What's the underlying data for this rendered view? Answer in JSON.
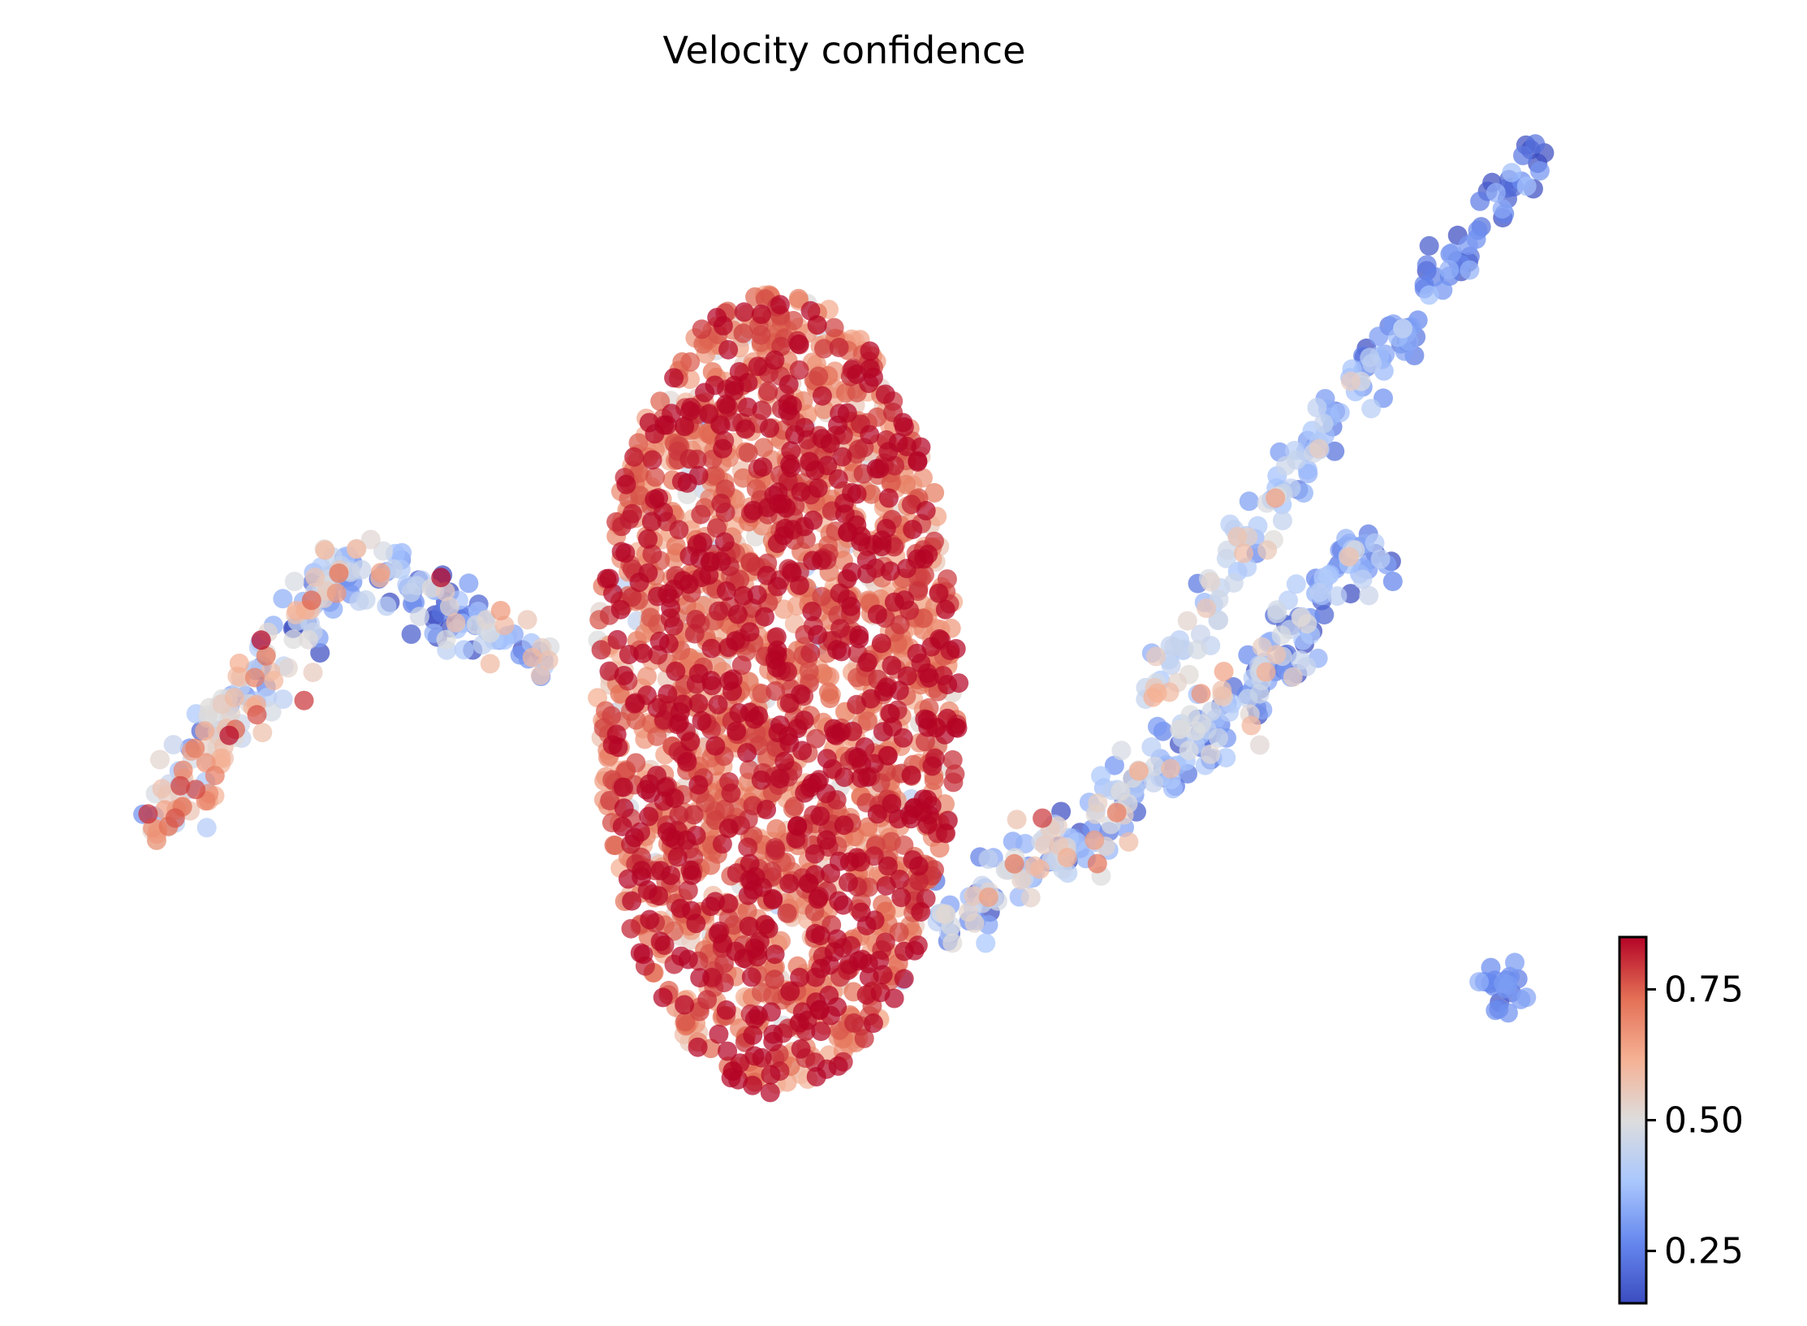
{
  "chart_data": {
    "type": "scatter",
    "title": "Velocity confidence",
    "xlabel": "",
    "ylabel": "",
    "axes_visible": false,
    "grid": false,
    "legend": "none",
    "colormap": {
      "name": "coolwarm",
      "stops": [
        "#3b4cc0",
        "#6688ee",
        "#aac7fd",
        "#dddddd",
        "#f5b194",
        "#e36f55",
        "#b40426"
      ],
      "vmin": 0.15,
      "vmax": 0.85
    },
    "colorbar": {
      "ticks": [
        0.25,
        0.5,
        0.75
      ],
      "tick_labels": [
        "0.25",
        "0.50",
        "0.75"
      ],
      "placement": "bottom-right"
    },
    "clusters": [
      {
        "label": "central-blob",
        "cx": 0,
        "cy": 0,
        "rx": 3.2,
        "ry": 6.0,
        "count": 2200,
        "value_mean": 0.74,
        "value_sd": 0.12
      },
      {
        "label": "left-branch",
        "path": [
          [
            -4.0,
            0.5
          ],
          [
            -7.5,
            2.0
          ],
          [
            -9.0,
            0.5
          ],
          [
            -11.0,
            -2.2
          ]
        ],
        "width": 0.45,
        "count": 260,
        "value_start": 0.32,
        "value_end": 0.55,
        "value_sd": 0.15
      },
      {
        "label": "right-branch",
        "path": [
          [
            2.8,
            -3.5
          ],
          [
            5.5,
            -2.0
          ],
          [
            8.0,
            -0.3
          ],
          [
            10.5,
            2.3
          ]
        ],
        "width": 0.5,
        "count": 280,
        "value_start": 0.42,
        "value_end": 0.32,
        "value_sd": 0.14
      },
      {
        "label": "upper-right-arm",
        "path": [
          [
            6.5,
            -0.2
          ],
          [
            9.0,
            3.2
          ],
          [
            11.5,
            6.0
          ],
          [
            13.6,
            8.2
          ]
        ],
        "width": 0.35,
        "count": 170,
        "value_start": 0.5,
        "value_end": 0.18,
        "value_sd": 0.09
      },
      {
        "label": "bottom-right-clump",
        "cx": 12.8,
        "cy": -4.4,
        "rx": 0.45,
        "ry": 0.45,
        "count": 20,
        "value_mean": 0.28,
        "value_sd": 0.04
      }
    ],
    "xlim": [
      -12,
      14.5
    ],
    "ylim": [
      -8.6,
      8.3
    ]
  }
}
